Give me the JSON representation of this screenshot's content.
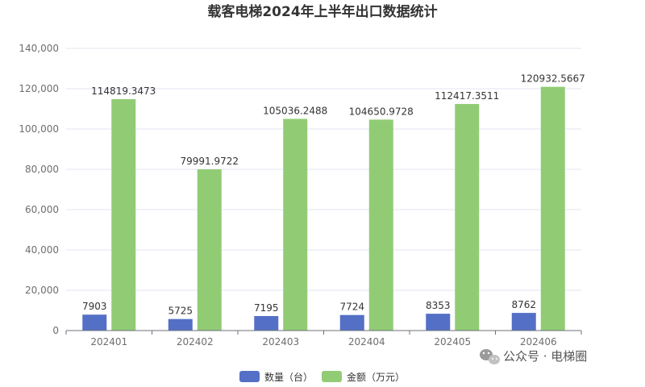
{
  "chart_data": {
    "type": "bar",
    "title": "载客电梯2024年上半年出口数据统计",
    "categories": [
      "202401",
      "202402",
      "202403",
      "202404",
      "202405",
      "202406"
    ],
    "series": [
      {
        "name": "数量（台）",
        "color": "#5470c6",
        "values": [
          7903,
          5725,
          7195,
          7724,
          8353,
          8762
        ],
        "labels": [
          "7903",
          "5725",
          "7195",
          "7724",
          "8353",
          "8762"
        ]
      },
      {
        "name": "金额（万元）",
        "color": "#91cc75",
        "values": [
          114819.3473,
          79991.9722,
          105036.2488,
          104650.9728,
          112417.3511,
          120932.5667
        ],
        "labels": [
          "114819.3473",
          "79991.9722",
          "105036.2488",
          "104650.9728",
          "112417.3511",
          "120932.5667"
        ]
      }
    ],
    "y_ticks": [
      "0",
      "20,000",
      "40,000",
      "60,000",
      "80,000",
      "100,000",
      "120,000",
      "140,000"
    ],
    "ylim": [
      0,
      140000
    ],
    "y_step": 20000,
    "grid": true,
    "legend_position": "bottom-center"
  },
  "watermark": {
    "icon": "wechat-icon",
    "text": "公众号 · 电梯圈"
  }
}
